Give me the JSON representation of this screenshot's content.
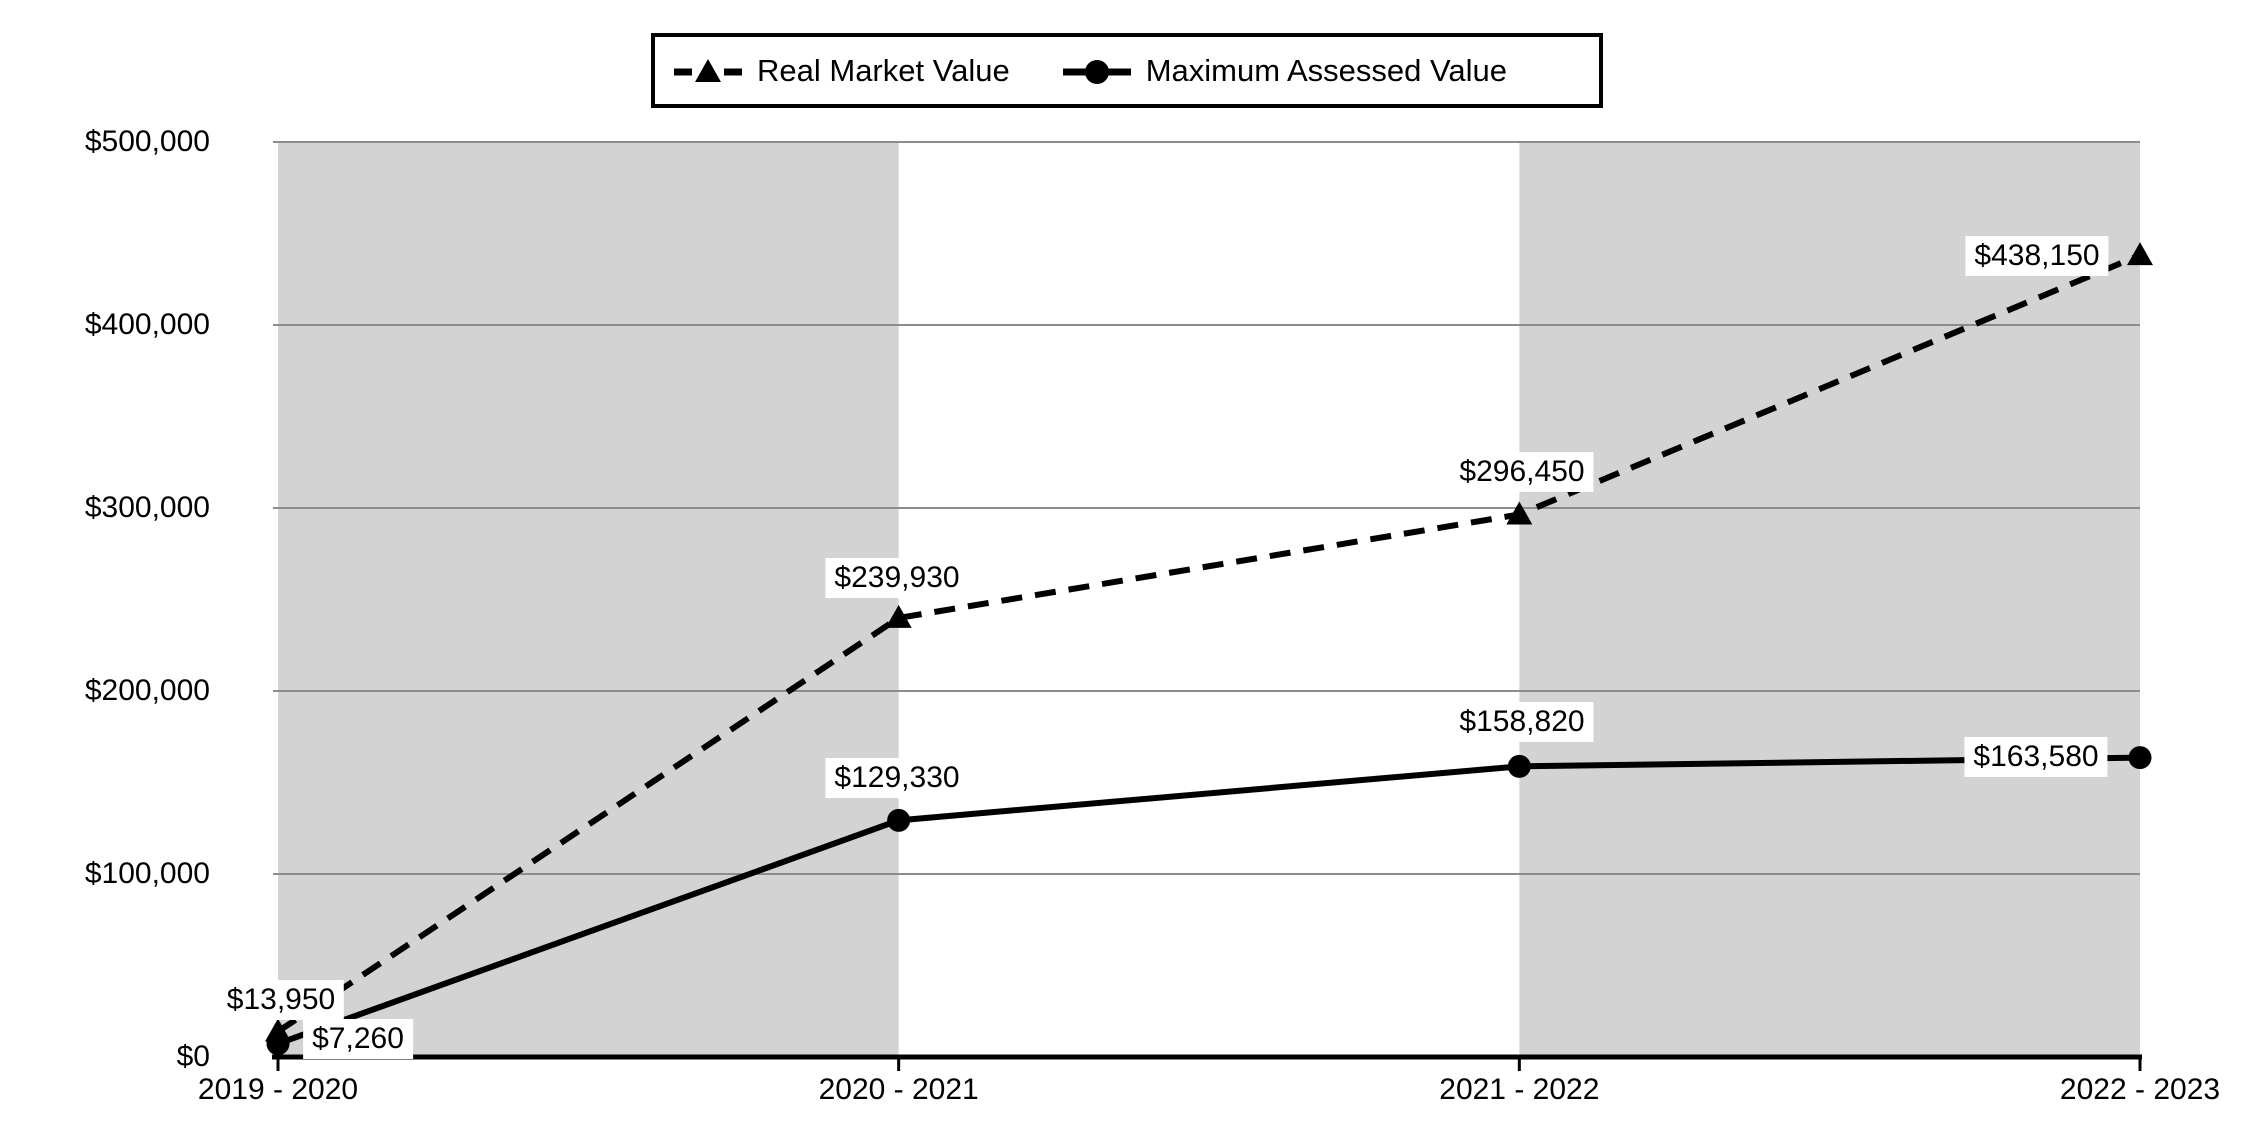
{
  "chart_data": {
    "type": "line",
    "title": "",
    "categories": [
      "2019 - 2020",
      "2020 - 2021",
      "2021 - 2022",
      "2022 - 2023"
    ],
    "series": [
      {
        "name": "Real Market Value",
        "line_style": "dashed",
        "marker": "triangle",
        "values": [
          13950,
          239930,
          296450,
          438150
        ],
        "data_labels": [
          "$13,950",
          "$239,930",
          "$296,450",
          "$438,150"
        ]
      },
      {
        "name": "Maximum Assessed Value",
        "line_style": "solid",
        "marker": "circle",
        "values": [
          7260,
          129330,
          158820,
          163580
        ],
        "data_labels": [
          "$7,260",
          "$129,330",
          "$158,820",
          "$163,580"
        ]
      }
    ],
    "y_axis": {
      "min": 0,
      "max": 500000,
      "step": 100000,
      "tick_labels": [
        "$0",
        "$100,000",
        "$200,000",
        "$300,000",
        "$400,000",
        "$500,000"
      ]
    },
    "ylim": [
      0,
      500000
    ],
    "legend": {
      "position": "top-center",
      "entries": [
        "Real Market Value",
        "Maximum Assessed Value"
      ]
    },
    "grid": "horizontal-only",
    "plot_bands": "alternating vertical bands gray/white/gray between category lines"
  },
  "colors": {
    "series_line": "#000000",
    "band_gray": "#d3d3d3",
    "gridline": "#8c8c8c",
    "axis_line": "#000000",
    "text": "#000000",
    "label_background": "#ffffff",
    "legend_border": "#000000",
    "background": "#ffffff"
  }
}
